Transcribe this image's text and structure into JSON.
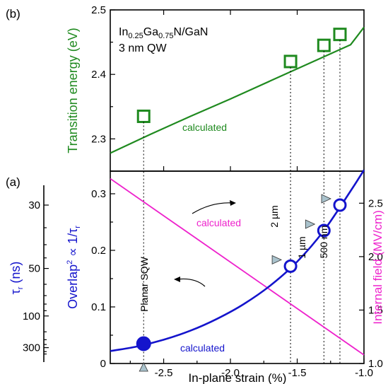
{
  "chart_data": [
    {
      "panel": "(b)",
      "type": "scatter",
      "ylabel": "Transition energy (eV)",
      "ylim": [
        2.25,
        2.5
      ],
      "xlim": [
        -2.9,
        -1.0
      ],
      "yticks": [
        "2.3",
        "2.4",
        "2.5"
      ],
      "annotation_line1_parts": [
        "In",
        "0.25",
        "Ga",
        "0.75",
        "N/GaN"
      ],
      "annotation_line2": "3 nm QW",
      "calc_label": "calculated",
      "measured": {
        "x": [
          -2.65,
          -1.55,
          -1.3,
          -1.18
        ],
        "y": [
          2.335,
          2.42,
          2.445,
          2.462
        ]
      },
      "calculated": {
        "x": [
          -2.9,
          -2.6,
          -2.3,
          -2.0,
          -1.7,
          -1.4,
          -1.1,
          -1.0
        ],
        "y": [
          2.278,
          2.307,
          2.335,
          2.362,
          2.39,
          2.418,
          2.446,
          2.473
        ]
      },
      "colors": {
        "data": "#1f8a1f"
      }
    },
    {
      "panel": "(a)",
      "type": "line",
      "xlabel": "In-plane strain (%)",
      "xlim": [
        -2.9,
        -1.0
      ],
      "xticks": [
        "-2.5",
        "-2.0",
        "-1.5",
        "-1.0"
      ],
      "ylim_left": [
        0,
        0.34
      ],
      "yticks_left": [
        "0",
        "0.1",
        "0.2",
        "0.3"
      ],
      "ylabel_left_parts": [
        "Overlap",
        "2",
        " ∝ 1/",
        "τ",
        "r"
      ],
      "ylim_right": [
        1.0,
        2.8
      ],
      "yticks_right": [
        "1.0",
        "1.5",
        "2.0",
        "2.5"
      ],
      "ylabel_right": "Internal field (MV/cm)",
      "tau_axis_label_parts": [
        "τ",
        "r",
        " (ns)"
      ],
      "tau_ticks": [
        "30",
        "50",
        "100",
        "300"
      ],
      "overlap_measured": {
        "x": [
          -2.65,
          -1.55,
          -1.3,
          -1.18
        ],
        "y": [
          0.035,
          0.172,
          0.235,
          0.28
        ]
      },
      "overlap_calculated": {
        "x": [
          -2.9,
          -2.7,
          -2.5,
          -2.3,
          -2.1,
          -1.9,
          -1.7,
          -1.5,
          -1.3,
          -1.1,
          -1.0
        ],
        "y": [
          0.022,
          0.03,
          0.042,
          0.058,
          0.079,
          0.105,
          0.138,
          0.18,
          0.235,
          0.305,
          0.342
        ]
      },
      "field_calculated": {
        "x": [
          -2.9,
          -1.0
        ],
        "y": [
          2.73,
          1.08
        ]
      },
      "labels": {
        "planar": "Planar SQW",
        "w2": "2 µm",
        "w1": "1 µm",
        "w500": "500 nm",
        "calc_magenta": "calculated",
        "calc_blue": "calculated"
      },
      "colors": {
        "overlap": "#1414cc",
        "field": "#ee22cc",
        "marker_fill": "#a9c2cc"
      }
    }
  ],
  "panel_labels": {
    "b": "(b)",
    "a": "(a)"
  }
}
